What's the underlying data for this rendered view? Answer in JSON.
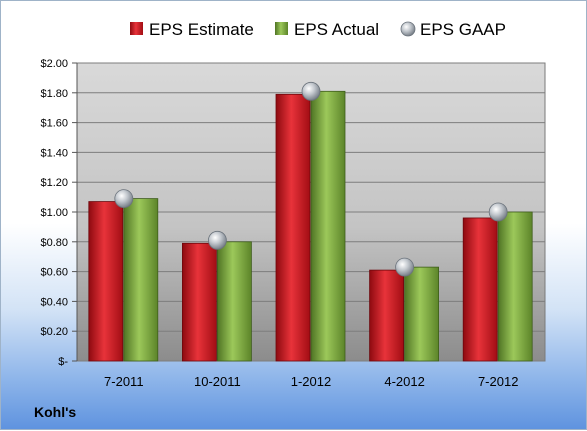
{
  "chart_data": {
    "type": "bar",
    "categories": [
      "7-2011",
      "10-2011",
      "1-2012",
      "4-2012",
      "7-2012"
    ],
    "series": [
      {
        "name": "EPS Estimate",
        "kind": "bar",
        "color": "#c0141c",
        "values": [
          1.07,
          0.79,
          1.79,
          0.61,
          0.96
        ]
      },
      {
        "name": "EPS Actual",
        "kind": "bar",
        "color": "#76a33c",
        "values": [
          1.09,
          0.8,
          1.81,
          0.63,
          1.0
        ]
      },
      {
        "name": "EPS GAAP",
        "kind": "marker",
        "color": "#a9b1ba",
        "values": [
          1.09,
          0.81,
          1.81,
          0.63,
          1.0
        ]
      }
    ],
    "yticks": [
      "$-",
      "$0.20",
      "$0.40",
      "$0.60",
      "$0.80",
      "$1.00",
      "$1.20",
      "$1.40",
      "$1.60",
      "$1.80",
      "$2.00"
    ],
    "ylim": [
      0,
      2.0
    ],
    "grid": true,
    "legend": "top",
    "company": "Kohl's"
  }
}
